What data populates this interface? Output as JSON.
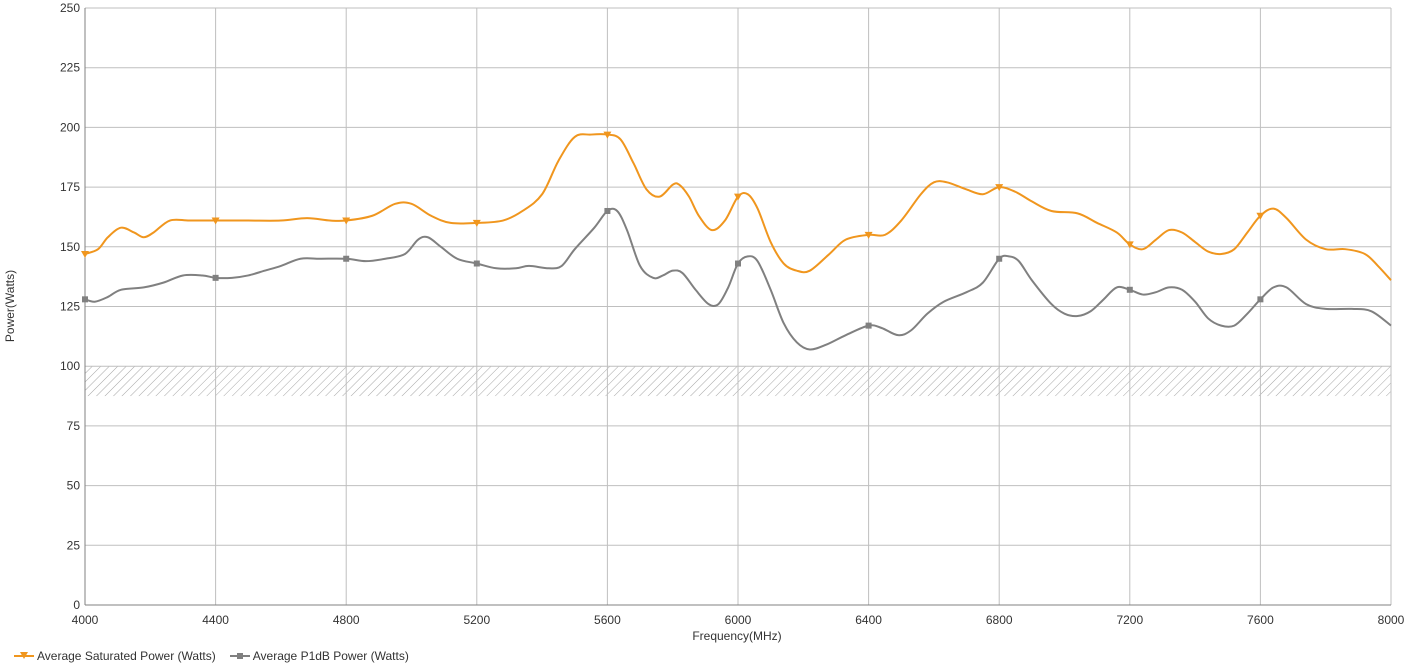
{
  "chart_data": {
    "type": "line",
    "title": "",
    "xlabel": "Frequency(MHz)",
    "ylabel": "Power(Watts)",
    "xlim": [
      4000,
      8000
    ],
    "ylim": [
      0,
      250
    ],
    "x_ticks": [
      4000,
      4400,
      4800,
      5200,
      5600,
      6000,
      6400,
      6800,
      7200,
      7600,
      8000
    ],
    "y_ticks": [
      0,
      25,
      50,
      75,
      100,
      125,
      150,
      175,
      200,
      225,
      250
    ],
    "grid": true,
    "legend_position": "bottom-left",
    "hatched_band": {
      "y_from": 87.5,
      "y_to": 100
    },
    "series": [
      {
        "name": "Average Saturated Power (Watts)",
        "color": "#f0961e",
        "marker": "triangle-down",
        "markers_x": [
          4000,
          4400,
          4800,
          5200,
          5600,
          6000,
          6400,
          6800,
          7200,
          7600
        ],
        "points": [
          [
            4000,
            147
          ],
          [
            4040,
            149
          ],
          [
            4070,
            154
          ],
          [
            4110,
            158
          ],
          [
            4150,
            156
          ],
          [
            4180,
            154
          ],
          [
            4210,
            156
          ],
          [
            4260,
            161
          ],
          [
            4320,
            161
          ],
          [
            4400,
            161
          ],
          [
            4500,
            161
          ],
          [
            4600,
            161
          ],
          [
            4680,
            162
          ],
          [
            4750,
            161
          ],
          [
            4800,
            161
          ],
          [
            4880,
            163
          ],
          [
            4950,
            168
          ],
          [
            5000,
            168
          ],
          [
            5060,
            163
          ],
          [
            5120,
            160
          ],
          [
            5200,
            160
          ],
          [
            5280,
            161
          ],
          [
            5340,
            165
          ],
          [
            5400,
            172
          ],
          [
            5450,
            186
          ],
          [
            5500,
            196
          ],
          [
            5550,
            197
          ],
          [
            5600,
            197
          ],
          [
            5640,
            195
          ],
          [
            5680,
            185
          ],
          [
            5720,
            174
          ],
          [
            5760,
            171
          ],
          [
            5800,
            176
          ],
          [
            5820,
            176
          ],
          [
            5850,
            171
          ],
          [
            5880,
            163
          ],
          [
            5920,
            157
          ],
          [
            5960,
            161
          ],
          [
            6000,
            171
          ],
          [
            6030,
            172
          ],
          [
            6060,
            166
          ],
          [
            6100,
            152
          ],
          [
            6140,
            143
          ],
          [
            6180,
            140
          ],
          [
            6220,
            140
          ],
          [
            6280,
            147
          ],
          [
            6330,
            153
          ],
          [
            6400,
            155
          ],
          [
            6450,
            155
          ],
          [
            6500,
            161
          ],
          [
            6560,
            172
          ],
          [
            6600,
            177
          ],
          [
            6640,
            177
          ],
          [
            6700,
            174
          ],
          [
            6750,
            172
          ],
          [
            6800,
            175
          ],
          [
            6850,
            173
          ],
          [
            6900,
            169
          ],
          [
            6960,
            165
          ],
          [
            7040,
            164
          ],
          [
            7100,
            160
          ],
          [
            7160,
            156
          ],
          [
            7200,
            151
          ],
          [
            7240,
            149
          ],
          [
            7280,
            153
          ],
          [
            7320,
            157
          ],
          [
            7360,
            156
          ],
          [
            7400,
            152
          ],
          [
            7440,
            148
          ],
          [
            7480,
            147
          ],
          [
            7520,
            149
          ],
          [
            7560,
            156
          ],
          [
            7600,
            163
          ],
          [
            7640,
            166
          ],
          [
            7680,
            162
          ],
          [
            7740,
            153
          ],
          [
            7800,
            149
          ],
          [
            7860,
            149
          ],
          [
            7920,
            147
          ],
          [
            7960,
            142
          ],
          [
            8000,
            136
          ]
        ]
      },
      {
        "name": "Average P1dB Power (Watts)",
        "color": "#808080",
        "marker": "square",
        "markers_x": [
          4000,
          4400,
          4800,
          5200,
          5600,
          6000,
          6400,
          6800,
          7200,
          7600
        ],
        "points": [
          [
            4000,
            128
          ],
          [
            4030,
            127
          ],
          [
            4070,
            129
          ],
          [
            4110,
            132
          ],
          [
            4180,
            133
          ],
          [
            4240,
            135
          ],
          [
            4300,
            138
          ],
          [
            4360,
            138
          ],
          [
            4400,
            137
          ],
          [
            4450,
            137
          ],
          [
            4500,
            138
          ],
          [
            4550,
            140
          ],
          [
            4600,
            142
          ],
          [
            4660,
            145
          ],
          [
            4720,
            145
          ],
          [
            4800,
            145
          ],
          [
            4860,
            144
          ],
          [
            4920,
            145
          ],
          [
            4980,
            147
          ],
          [
            5020,
            153
          ],
          [
            5050,
            154
          ],
          [
            5090,
            150
          ],
          [
            5140,
            145
          ],
          [
            5200,
            143
          ],
          [
            5260,
            141
          ],
          [
            5320,
            141
          ],
          [
            5360,
            142
          ],
          [
            5420,
            141
          ],
          [
            5460,
            142
          ],
          [
            5500,
            149
          ],
          [
            5560,
            158
          ],
          [
            5600,
            165
          ],
          [
            5630,
            165
          ],
          [
            5660,
            157
          ],
          [
            5700,
            142
          ],
          [
            5740,
            137
          ],
          [
            5770,
            138
          ],
          [
            5800,
            140
          ],
          [
            5830,
            139
          ],
          [
            5870,
            132
          ],
          [
            5910,
            126
          ],
          [
            5940,
            126
          ],
          [
            5970,
            133
          ],
          [
            6000,
            143
          ],
          [
            6030,
            146
          ],
          [
            6060,
            144
          ],
          [
            6100,
            132
          ],
          [
            6140,
            118
          ],
          [
            6180,
            110
          ],
          [
            6220,
            107
          ],
          [
            6270,
            109
          ],
          [
            6330,
            113
          ],
          [
            6400,
            117
          ],
          [
            6440,
            116
          ],
          [
            6490,
            113
          ],
          [
            6530,
            115
          ],
          [
            6580,
            122
          ],
          [
            6630,
            127
          ],
          [
            6700,
            131
          ],
          [
            6750,
            135
          ],
          [
            6800,
            145
          ],
          [
            6830,
            146
          ],
          [
            6860,
            144
          ],
          [
            6900,
            136
          ],
          [
            6960,
            126
          ],
          [
            7000,
            122
          ],
          [
            7040,
            121
          ],
          [
            7080,
            123
          ],
          [
            7120,
            128
          ],
          [
            7160,
            133
          ],
          [
            7200,
            132
          ],
          [
            7240,
            130
          ],
          [
            7280,
            131
          ],
          [
            7320,
            133
          ],
          [
            7360,
            132
          ],
          [
            7400,
            127
          ],
          [
            7440,
            120
          ],
          [
            7480,
            117
          ],
          [
            7520,
            117
          ],
          [
            7560,
            122
          ],
          [
            7600,
            128
          ],
          [
            7640,
            133
          ],
          [
            7680,
            133
          ],
          [
            7740,
            126
          ],
          [
            7800,
            124
          ],
          [
            7880,
            124
          ],
          [
            7940,
            123
          ],
          [
            8000,
            117
          ]
        ]
      }
    ]
  },
  "legend": {
    "items": [
      {
        "label": "Average Saturated Power (Watts)",
        "color": "#f0961e",
        "marker": "triangle-down"
      },
      {
        "label": "Average P1dB Power (Watts)",
        "color": "#808080",
        "marker": "square"
      }
    ]
  },
  "colors": {
    "grid": "#bfbfbf",
    "axis": "#808080",
    "hatch": "#a6a6a6"
  }
}
